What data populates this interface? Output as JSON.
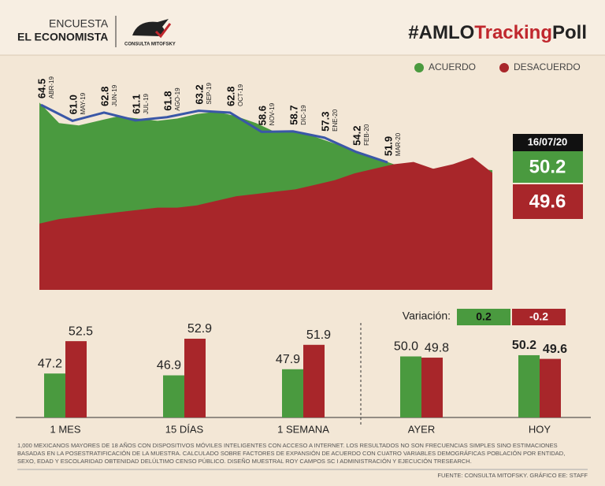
{
  "header": {
    "survey": "ENCUESTA",
    "brand": "EL ECONOMISTA",
    "logo": "CONSULTA MITOFSKY",
    "hashtag": [
      "#AMLO",
      "Tracking",
      "Poll"
    ]
  },
  "chart_data": [
    {
      "type": "area",
      "categories": [
        null,
        null,
        null,
        null,
        null,
        null,
        null,
        null,
        null,
        null,
        null,
        null,
        null,
        null,
        null,
        null,
        null,
        null,
        null,
        null,
        null,
        null,
        null,
        null
      ],
      "series": [
        {
          "name": "ACUERDO",
          "color": "#4a9a3f",
          "values": [
            65,
            60.5,
            60,
            61,
            62,
            61.5,
            61,
            61.5,
            62.5,
            63,
            62,
            60.5,
            58.5,
            58.5,
            57.5,
            56,
            54.5,
            53,
            51.5,
            51,
            50.5,
            51,
            50.5,
            50.2
          ]
        },
        {
          "name": "DESACUERDO",
          "color": "#a8262a",
          "values": [
            38.5,
            39.5,
            40,
            40.5,
            41,
            41.5,
            42,
            42,
            42.5,
            43.5,
            44.5,
            45,
            45.5,
            46,
            47,
            48,
            49.5,
            50.5,
            51.5,
            52,
            50.5,
            51.5,
            53,
            49.6
          ]
        }
      ],
      "ylim": [
        24,
        72
      ],
      "legend": "top-right"
    },
    {
      "type": "line",
      "categories": [
        "ABR-19",
        "MAY-19",
        "JUN-19",
        "JUL-19",
        "AGO-19",
        "SEP-19",
        "OCT-19",
        "NOV-19",
        "DIC-19",
        "ENE-20",
        "FEB-20",
        "MAR-20"
      ],
      "values": [
        64.5,
        61.0,
        62.8,
        61.1,
        61.8,
        63.2,
        62.8,
        58.6,
        58.7,
        57.3,
        54.2,
        51.9
      ],
      "value_labels": [
        "64.5",
        "61.0",
        "62.8",
        "61.1",
        "61.8",
        "63.2",
        "62.8",
        "58.6",
        "58.7",
        "57.3",
        "54.2",
        "51.9"
      ],
      "color": "#3a57a7",
      "ylim": [
        24,
        72
      ]
    },
    {
      "type": "bar",
      "categories": [
        "1 MES",
        "15 DÍAS",
        "1 SEMANA",
        "AYER",
        "HOY"
      ],
      "series": [
        {
          "color": "#4a9a3f",
          "values": [
            47.2,
            46.9,
            47.9,
            50.0,
            50.2
          ],
          "value_labels": [
            "47.2",
            "46.9",
            "47.9",
            "50.0",
            "50.2"
          ]
        },
        {
          "color": "#a8262a",
          "values": [
            52.5,
            52.9,
            51.9,
            49.8,
            49.6
          ],
          "value_labels": [
            "52.5",
            "52.9",
            "51.9",
            "49.8",
            "49.6"
          ]
        }
      ],
      "ylim": [
        40,
        56
      ]
    }
  ],
  "current": {
    "date": "16/07/20",
    "acuerdo": 50.2,
    "desacuerdo": 49.6
  },
  "variation": {
    "label": "Variación:",
    "acuerdo": 0.2,
    "desacuerdo": -0.2
  },
  "footnote": [
    "1,000 MEXICANOS MAYORES DE 18 AÑOS CON DISPOSITIVOS MÓVILES INTELIGENTES CON ACCESO A INTERNET. LOS RESULTADOS NO SON FRECUENCIAS SIMPLES SINO ESTIMACIONES",
    "BASADAS EN LA POSESTRATIFICACIÓN DE LA MUESTRA. CALCULADO SOBRE FACTORES DE EXPANSIÓN DE ACUERDO CON CUATRO VARIABLES DEMOGRÁFICAS POBLACIÓN POR ENTIDAD,",
    "SEXO, EDAD Y ESCOLARIDAD OBTENIDAD DELÚLTIMO CENSO PÚBLICO. DISEÑO MUESTRAL ROY CAMPOS SC I ADMINISTRACIÓN Y EJECUCIÓN TRESEARCH."
  ],
  "source": "FUENTE: CONSULTA MITOFSKY. GRÁFICO EE: STAFF"
}
